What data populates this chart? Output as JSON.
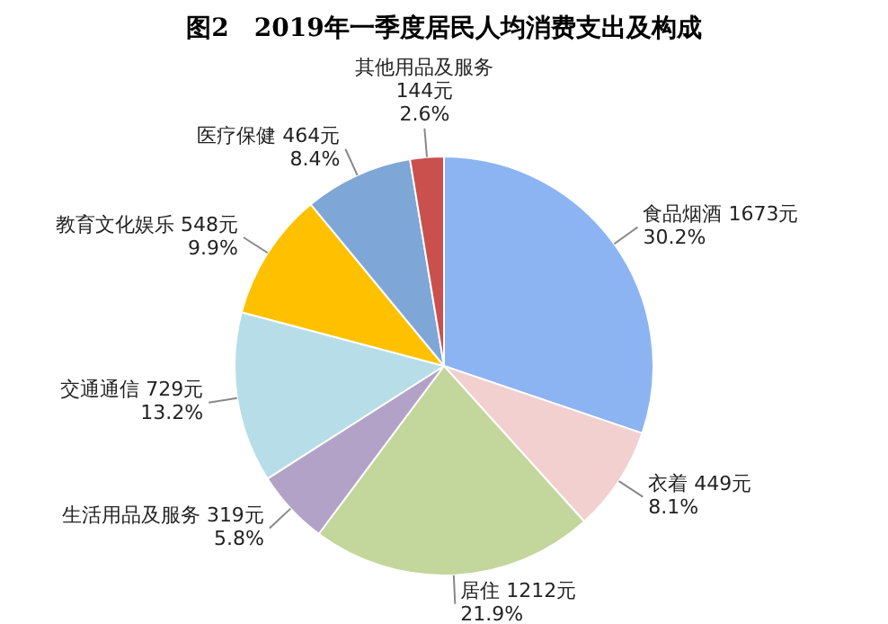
{
  "chart_data": {
    "type": "pie",
    "title": "图2　2019年一季度居民人均消费支出及构成",
    "categories": [
      "食品烟酒",
      "衣着",
      "居住",
      "生活用品及服务",
      "交通通信",
      "教育文化娱乐",
      "医疗保健",
      "其他用品及服务"
    ],
    "values": [
      1673,
      449,
      1212,
      319,
      729,
      548,
      464,
      144
    ],
    "colors": [
      "#8db4f2",
      "#f2d0d0",
      "#c3d69b",
      "#b3a2c7",
      "#b7dee8",
      "#ffc000",
      "#7ea6d6",
      "#c9504d"
    ],
    "value_labels": [
      "1673元\n30.2%",
      "449元\n8.1%",
      "1212元\n21.9%",
      "319元\n5.8%",
      "729元\n13.2%",
      "548元\n9.9%",
      "464元\n8.4%",
      "144元\n2.6%"
    ],
    "legend": false
  }
}
